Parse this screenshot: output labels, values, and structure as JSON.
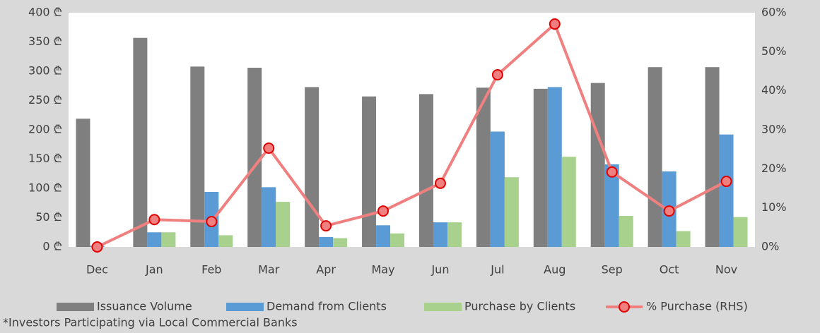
{
  "chart_data": {
    "type": "bar_line",
    "categories": [
      "Dec",
      "Jan",
      "Feb",
      "Mar",
      "Apr",
      "May",
      "Jun",
      "Jul",
      "Aug",
      "Sep",
      "Oct",
      "Nov"
    ],
    "series": [
      {
        "name": "Issuance Volume",
        "color": "#7f7f7f",
        "values": [
          219,
          357,
          308,
          306,
          273,
          257,
          261,
          272,
          270,
          280,
          307,
          307
        ]
      },
      {
        "name": "Demand from Clients",
        "color": "#5b9bd5",
        "values": [
          2,
          25,
          94,
          102,
          17,
          37,
          42,
          197,
          273,
          141,
          129,
          192
        ]
      },
      {
        "name": "Purchase by Clients",
        "color": "#a9d18e",
        "values": [
          0,
          25,
          20,
          77,
          15,
          23,
          42,
          119,
          154,
          53,
          27,
          51
        ]
      },
      {
        "name": "% Purchase (RHS)",
        "color": "#f08080",
        "marker_color": "#e00000",
        "axis": "y2",
        "values": [
          0,
          7.0,
          6.5,
          25.3,
          5.4,
          9.2,
          16.3,
          44.1,
          57.1,
          19.2,
          9.2,
          16.8
        ]
      }
    ],
    "ylim": [
      0,
      400
    ],
    "yticks": [
      {
        "value": 0,
        "label": "0 ₾"
      },
      {
        "value": 50,
        "label": "50 ₾"
      },
      {
        "value": 100,
        "label": "100 ₾"
      },
      {
        "value": 150,
        "label": "150 ₾"
      },
      {
        "value": 200,
        "label": "200 ₾"
      },
      {
        "value": 250,
        "label": "250 ₾"
      },
      {
        "value": 300,
        "label": "300 ₾"
      },
      {
        "value": 350,
        "label": "350 ₾"
      },
      {
        "value": 400,
        "label": "400 ₾"
      }
    ],
    "y2lim": [
      0,
      60
    ],
    "y2ticks": [
      {
        "value": 0,
        "label": "0%"
      },
      {
        "value": 10,
        "label": "10%"
      },
      {
        "value": 20,
        "label": "20%"
      },
      {
        "value": 30,
        "label": "30%"
      },
      {
        "value": 40,
        "label": "40%"
      },
      {
        "value": 50,
        "label": "50%"
      },
      {
        "value": 60,
        "label": "60%"
      }
    ],
    "footnote": "*Investors Participating via Local Commercial Banks"
  }
}
